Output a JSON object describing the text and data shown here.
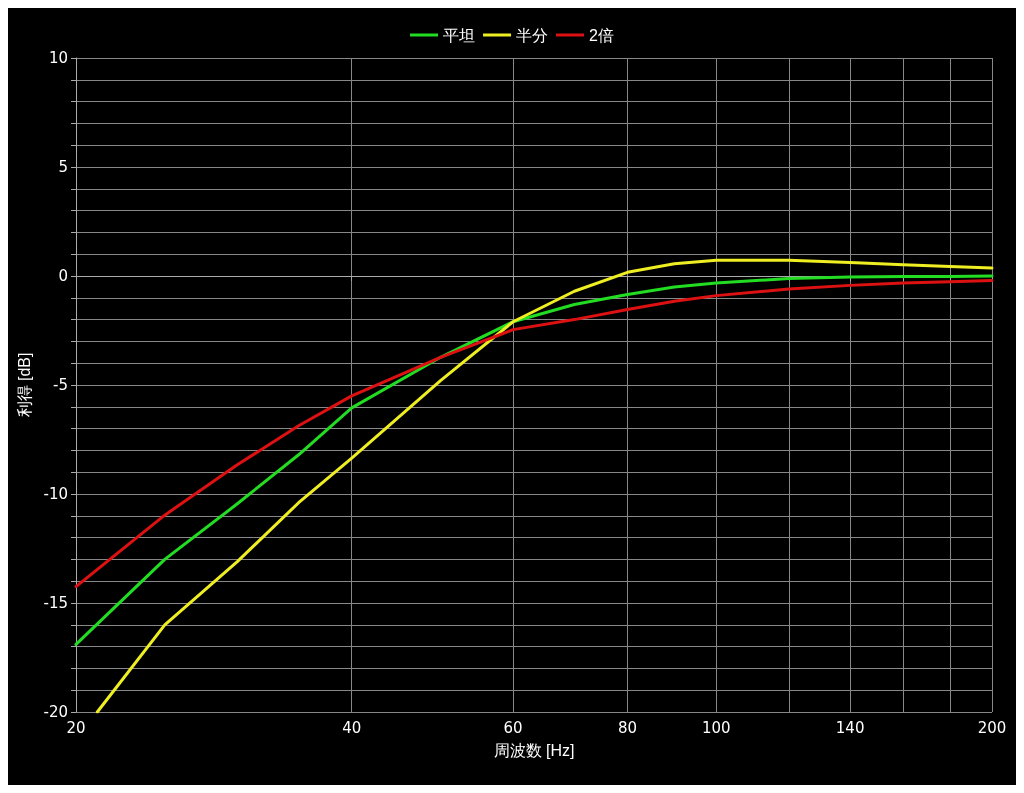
{
  "chart_data": {
    "type": "line",
    "xlabel": "周波数 [Hz]",
    "ylabel": "利得 [dB]",
    "log": "x",
    "grid": true,
    "legend": "top",
    "marker": "none",
    "line_style": "solid",
    "xlim": [
      20,
      200
    ],
    "ylim": [
      -20,
      10
    ],
    "xticks": [
      20,
      40,
      60,
      80,
      100,
      {
        "value": 120,
        "label": null
      },
      140,
      {
        "value": 160,
        "label": null
      },
      {
        "value": 180,
        "label": null
      },
      200
    ],
    "yticks": [
      -20,
      {
        "value": -19,
        "label": null
      },
      {
        "value": -18,
        "label": null
      },
      {
        "value": -17,
        "label": null
      },
      {
        "value": -16,
        "label": null
      },
      -15,
      {
        "value": -14,
        "label": null
      },
      {
        "value": -13,
        "label": null
      },
      {
        "value": -12,
        "label": null
      },
      {
        "value": -11,
        "label": null
      },
      -10,
      {
        "value": -9,
        "label": null
      },
      {
        "value": -8,
        "label": null
      },
      {
        "value": -7,
        "label": null
      },
      {
        "value": -6,
        "label": null
      },
      -5,
      {
        "value": -4,
        "label": null
      },
      {
        "value": -3,
        "label": null
      },
      {
        "value": -2,
        "label": null
      },
      {
        "value": -1,
        "label": null
      },
      0,
      {
        "value": 1,
        "label": null
      },
      {
        "value": 2,
        "label": null
      },
      {
        "value": 3,
        "label": null
      },
      {
        "value": 4,
        "label": null
      },
      5,
      {
        "value": 6,
        "label": null
      },
      {
        "value": 7,
        "label": null
      },
      {
        "value": 8,
        "label": null
      },
      {
        "value": 9,
        "label": null
      },
      10
    ],
    "series": [
      {
        "name": "平坦",
        "color": "#22dd22",
        "x": [
          20,
          25,
          30,
          35,
          40,
          50,
          60,
          70,
          80,
          90,
          100,
          120,
          140,
          160,
          180,
          200
        ],
        "values": [
          -16.9,
          -13.0,
          -10.45,
          -8.2,
          -6.05,
          -3.73,
          -2.1,
          -1.31,
          -0.85,
          -0.5,
          -0.32,
          -0.12,
          -0.05,
          -0.02,
          -0.02,
          0
        ]
      },
      {
        "name": "半分",
        "color": "#eeee22",
        "x": [
          21.1,
          25,
          30,
          35,
          40,
          50,
          60,
          70,
          80,
          90,
          100,
          120,
          140,
          160,
          180,
          200
        ],
        "values": [
          -20,
          -16.0,
          -13.1,
          -10.4,
          -8.35,
          -4.8,
          -2.1,
          -0.7,
          0.17,
          0.56,
          0.72,
          0.72,
          0.62,
          0.52,
          0.44,
          0.37
        ]
      },
      {
        "name": "2倍",
        "color": "#dd1111",
        "x": [
          20,
          25,
          30,
          35,
          40,
          50,
          60,
          70,
          80,
          90,
          100,
          120,
          140,
          160,
          180,
          200
        ],
        "values": [
          -14.25,
          -10.97,
          -8.66,
          -6.87,
          -5.5,
          -3.73,
          -2.46,
          -2.0,
          -1.54,
          -1.16,
          -0.9,
          -0.6,
          -0.43,
          -0.32,
          -0.26,
          -0.21
        ]
      }
    ]
  }
}
